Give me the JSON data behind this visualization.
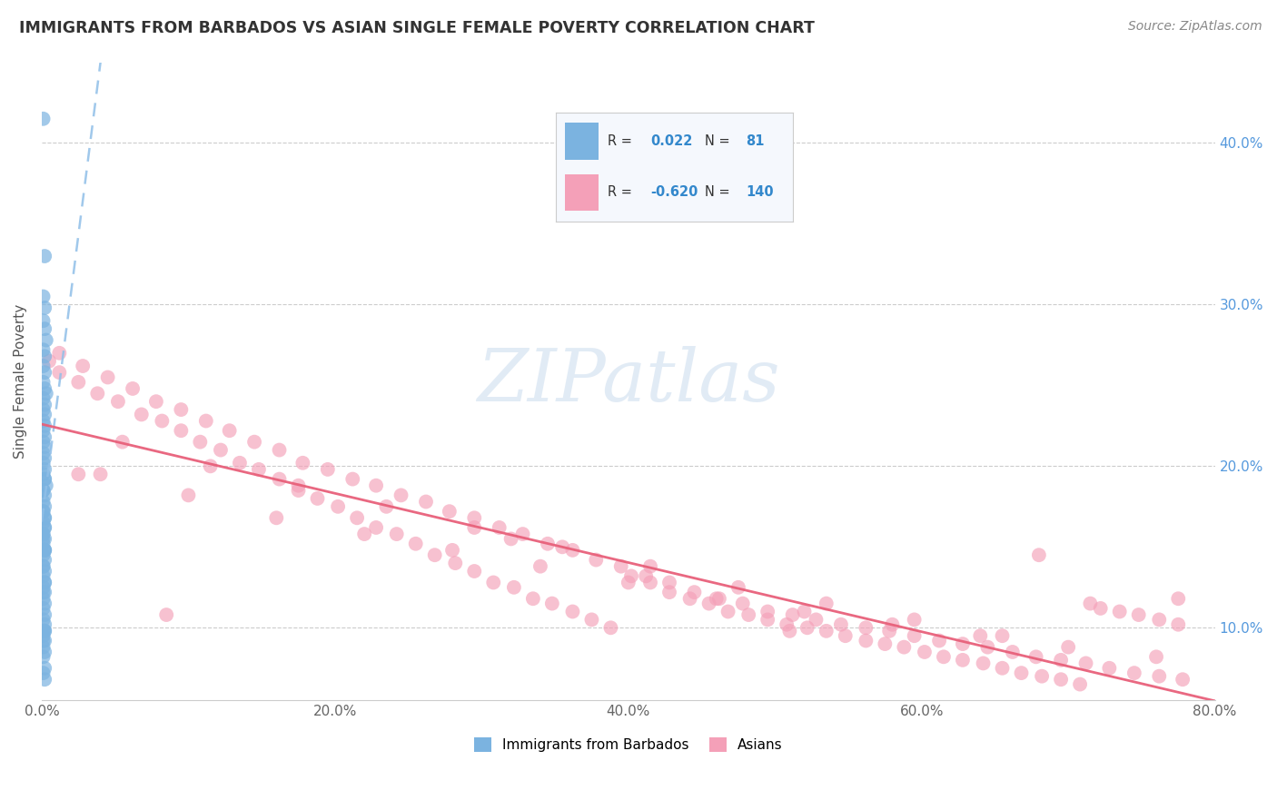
{
  "title": "IMMIGRANTS FROM BARBADOS VS ASIAN SINGLE FEMALE POVERTY CORRELATION CHART",
  "source_text": "Source: ZipAtlas.com",
  "ylabel": "Single Female Poverty",
  "xlabel_barbados": "Immigrants from Barbados",
  "xlabel_asians": "Asians",
  "watermark": "ZIPatlas",
  "xlim": [
    0.0,
    0.8
  ],
  "ylim": [
    0.055,
    0.45
  ],
  "yticks": [
    0.1,
    0.2,
    0.3,
    0.4
  ],
  "xticks": [
    0.0,
    0.2,
    0.4,
    0.6,
    0.8
  ],
  "R_barbados": 0.022,
  "N_barbados": 81,
  "R_asians": -0.62,
  "N_asians": 140,
  "blue_color": "#7bb3e0",
  "pink_color": "#f4a0b8",
  "blue_line_color": "#90bfe8",
  "pink_line_color": "#e8607a",
  "barbados_x": [
    0.001,
    0.002,
    0.001,
    0.002,
    0.001,
    0.002,
    0.003,
    0.001,
    0.002,
    0.001,
    0.002,
    0.001,
    0.002,
    0.003,
    0.001,
    0.002,
    0.001,
    0.002,
    0.001,
    0.002,
    0.001,
    0.002,
    0.001,
    0.002,
    0.001,
    0.002,
    0.001,
    0.002,
    0.001,
    0.002,
    0.003,
    0.001,
    0.002,
    0.001,
    0.002,
    0.001,
    0.002,
    0.001,
    0.002,
    0.001,
    0.002,
    0.001,
    0.002,
    0.001,
    0.002,
    0.001,
    0.002,
    0.001,
    0.002,
    0.001,
    0.002,
    0.001,
    0.002,
    0.001,
    0.002,
    0.001,
    0.002,
    0.001,
    0.002,
    0.001,
    0.002,
    0.001,
    0.002,
    0.001,
    0.002,
    0.001,
    0.002,
    0.001,
    0.002,
    0.001,
    0.002,
    0.001,
    0.002,
    0.001,
    0.002,
    0.001,
    0.002,
    0.001,
    0.002,
    0.001,
    0.002
  ],
  "barbados_y": [
    0.415,
    0.33,
    0.305,
    0.298,
    0.29,
    0.285,
    0.278,
    0.272,
    0.268,
    0.262,
    0.258,
    0.252,
    0.248,
    0.245,
    0.242,
    0.238,
    0.235,
    0.232,
    0.228,
    0.225,
    0.222,
    0.218,
    0.215,
    0.212,
    0.208,
    0.205,
    0.202,
    0.198,
    0.195,
    0.192,
    0.188,
    0.185,
    0.182,
    0.178,
    0.175,
    0.172,
    0.168,
    0.165,
    0.162,
    0.158,
    0.155,
    0.152,
    0.148,
    0.145,
    0.142,
    0.138,
    0.135,
    0.132,
    0.128,
    0.125,
    0.122,
    0.118,
    0.115,
    0.112,
    0.108,
    0.105,
    0.102,
    0.098,
    0.098,
    0.095,
    0.092,
    0.088,
    0.085,
    0.082,
    0.162,
    0.155,
    0.148,
    0.172,
    0.168,
    0.158,
    0.148,
    0.138,
    0.192,
    0.185,
    0.128,
    0.122,
    0.098,
    0.092,
    0.075,
    0.072,
    0.068
  ],
  "asians_x": [
    0.005,
    0.012,
    0.025,
    0.038,
    0.052,
    0.068,
    0.082,
    0.095,
    0.108,
    0.122,
    0.135,
    0.148,
    0.162,
    0.175,
    0.188,
    0.202,
    0.215,
    0.228,
    0.242,
    0.255,
    0.268,
    0.282,
    0.295,
    0.308,
    0.322,
    0.335,
    0.348,
    0.362,
    0.375,
    0.388,
    0.402,
    0.415,
    0.428,
    0.442,
    0.455,
    0.468,
    0.482,
    0.495,
    0.508,
    0.522,
    0.535,
    0.548,
    0.562,
    0.575,
    0.588,
    0.602,
    0.615,
    0.628,
    0.642,
    0.655,
    0.668,
    0.682,
    0.695,
    0.708,
    0.722,
    0.735,
    0.748,
    0.762,
    0.775,
    0.012,
    0.028,
    0.045,
    0.062,
    0.078,
    0.095,
    0.112,
    0.128,
    0.145,
    0.162,
    0.178,
    0.195,
    0.212,
    0.228,
    0.245,
    0.262,
    0.278,
    0.295,
    0.312,
    0.328,
    0.345,
    0.362,
    0.378,
    0.395,
    0.412,
    0.428,
    0.445,
    0.462,
    0.478,
    0.495,
    0.512,
    0.528,
    0.545,
    0.562,
    0.578,
    0.595,
    0.612,
    0.628,
    0.645,
    0.662,
    0.678,
    0.695,
    0.712,
    0.728,
    0.745,
    0.762,
    0.778,
    0.055,
    0.115,
    0.175,
    0.235,
    0.295,
    0.355,
    0.415,
    0.475,
    0.535,
    0.595,
    0.655,
    0.715,
    0.775,
    0.04,
    0.1,
    0.16,
    0.22,
    0.28,
    0.34,
    0.4,
    0.46,
    0.52,
    0.58,
    0.64,
    0.7,
    0.76,
    0.025,
    0.085,
    0.32,
    0.51,
    0.68
  ],
  "asians_y": [
    0.265,
    0.258,
    0.252,
    0.245,
    0.24,
    0.232,
    0.228,
    0.222,
    0.215,
    0.21,
    0.202,
    0.198,
    0.192,
    0.185,
    0.18,
    0.175,
    0.168,
    0.162,
    0.158,
    0.152,
    0.145,
    0.14,
    0.135,
    0.128,
    0.125,
    0.118,
    0.115,
    0.11,
    0.105,
    0.1,
    0.132,
    0.128,
    0.122,
    0.118,
    0.115,
    0.11,
    0.108,
    0.105,
    0.102,
    0.1,
    0.098,
    0.095,
    0.092,
    0.09,
    0.088,
    0.085,
    0.082,
    0.08,
    0.078,
    0.075,
    0.072,
    0.07,
    0.068,
    0.065,
    0.112,
    0.11,
    0.108,
    0.105,
    0.102,
    0.27,
    0.262,
    0.255,
    0.248,
    0.24,
    0.235,
    0.228,
    0.222,
    0.215,
    0.21,
    0.202,
    0.198,
    0.192,
    0.188,
    0.182,
    0.178,
    0.172,
    0.168,
    0.162,
    0.158,
    0.152,
    0.148,
    0.142,
    0.138,
    0.132,
    0.128,
    0.122,
    0.118,
    0.115,
    0.11,
    0.108,
    0.105,
    0.102,
    0.1,
    0.098,
    0.095,
    0.092,
    0.09,
    0.088,
    0.085,
    0.082,
    0.08,
    0.078,
    0.075,
    0.072,
    0.07,
    0.068,
    0.215,
    0.2,
    0.188,
    0.175,
    0.162,
    0.15,
    0.138,
    0.125,
    0.115,
    0.105,
    0.095,
    0.115,
    0.118,
    0.195,
    0.182,
    0.168,
    0.158,
    0.148,
    0.138,
    0.128,
    0.118,
    0.11,
    0.102,
    0.095,
    0.088,
    0.082,
    0.195,
    0.108,
    0.155,
    0.098,
    0.145
  ]
}
